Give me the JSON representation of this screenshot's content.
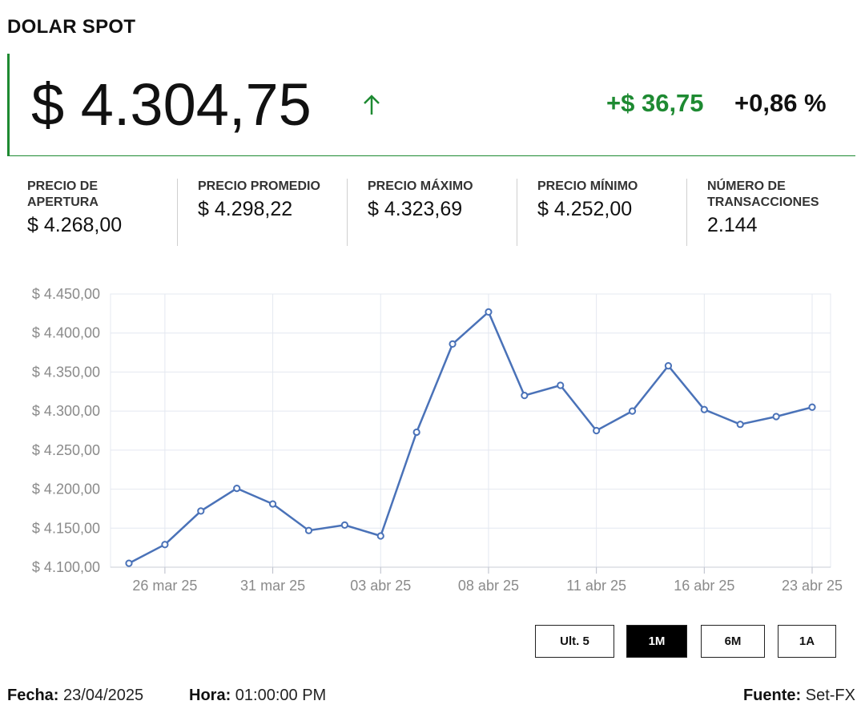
{
  "header": {
    "title": "DOLAR SPOT"
  },
  "price": {
    "value": "$ 4.304,75",
    "change_abs": "+$ 36,75",
    "change_pct": "+0,86 %",
    "arrow_icon": "arrow-up-icon",
    "up_color": "#1e8a32"
  },
  "stats": [
    {
      "label": "PRECIO DE APERTURA",
      "value": "$ 4.268,00"
    },
    {
      "label": "PRECIO PROMEDIO",
      "value": "$ 4.298,22"
    },
    {
      "label": "PRECIO MÁXIMO",
      "value": "$ 4.323,69"
    },
    {
      "label": "PRECIO MÍNIMO",
      "value": "$ 4.252,00"
    },
    {
      "label": "NÚMERO DE TRANSACCIONES",
      "value": "2.144"
    }
  ],
  "chart_data": {
    "type": "line",
    "ylim": [
      4100,
      4450
    ],
    "yticks": [
      "$ 4.100,00",
      "$ 4.150,00",
      "$ 4.200,00",
      "$ 4.250,00",
      "$ 4.300,00",
      "$ 4.350,00",
      "$ 4.400,00",
      "$ 4.450,00"
    ],
    "x": [
      "25 mar 25",
      "26 mar 25",
      "27 mar 25",
      "28 mar 25",
      "31 mar 25",
      "01 abr 25",
      "02 abr 25",
      "03 abr 25",
      "04 abr 25",
      "07 abr 25",
      "08 abr 25",
      "09 abr 25",
      "10 abr 25",
      "11 abr 25",
      "14 abr 25",
      "15 abr 25",
      "16 abr 25",
      "21 abr 25",
      "22 abr 25",
      "23 abr 25"
    ],
    "xtick_labels": [
      "26 mar 25",
      "31 mar 25",
      "03 abr 25",
      "08 abr 25",
      "11 abr 25",
      "16 abr 25",
      "23 abr 25"
    ],
    "xtick_indices": [
      1,
      4,
      7,
      10,
      13,
      16,
      19
    ],
    "series": [
      {
        "values": [
          4105,
          4129,
          4172,
          4201,
          4181,
          4147,
          4154,
          4140,
          4273,
          4386,
          4427,
          4320,
          4333,
          4275,
          4300,
          4358,
          4302,
          4283,
          4293,
          4305
        ]
      }
    ],
    "line_color": "#4a72b8",
    "grid": true
  },
  "ranges": [
    {
      "label": "Ult. 5",
      "active": false
    },
    {
      "label": "1M",
      "active": true
    },
    {
      "label": "6M",
      "active": false
    },
    {
      "label": "1A",
      "active": false
    }
  ],
  "footer": {
    "date_label": "Fecha:",
    "date_value": "23/04/2025",
    "time_label": "Hora:",
    "time_value": "01:00:00 PM",
    "source_label": "Fuente:",
    "source_value": "Set-FX"
  }
}
